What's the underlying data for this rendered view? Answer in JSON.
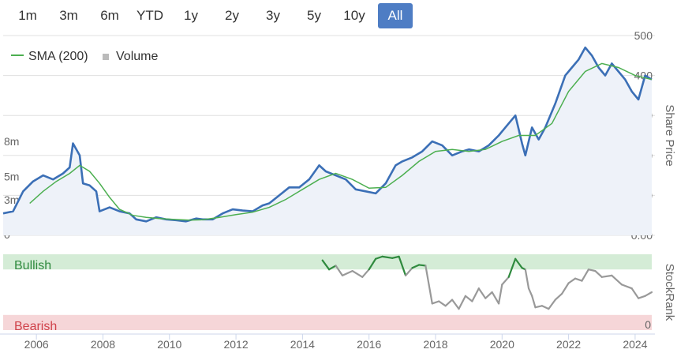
{
  "range_buttons": [
    {
      "label": "1m",
      "active": false
    },
    {
      "label": "3m",
      "active": false
    },
    {
      "label": "6m",
      "active": false
    },
    {
      "label": "YTD",
      "active": false
    },
    {
      "label": "1y",
      "active": false
    },
    {
      "label": "2y",
      "active": false
    },
    {
      "label": "3y",
      "active": false
    },
    {
      "label": "5y",
      "active": false
    },
    {
      "label": "10y",
      "active": false
    },
    {
      "label": "All",
      "active": true
    }
  ],
  "colors": {
    "price": "#3b6fb6",
    "sma": "#4caf50",
    "volume": "#bbbbbb",
    "bullish_band": "#d4ecd6",
    "bearish_band": "#f6d6d8",
    "rank_neutral": "#999999",
    "rank_bull": "#2f8a3e",
    "rank_bear": "#d0434b",
    "active_button": "#4e7dc4"
  },
  "chart_data": [
    {
      "type": "line",
      "legend": {
        "placement": "top-left",
        "entries": [
          "SMA (200)",
          "Volume"
        ]
      },
      "y_axis": {
        "title": "Share Price",
        "ticks": [
          "0.00",
          "100",
          "200",
          "300",
          "400",
          "500"
        ],
        "range": [
          0,
          500
        ],
        "position": "right"
      },
      "volume_axis": {
        "ticks": [
          "0",
          "3m",
          "5m",
          "8m"
        ],
        "range": [
          0,
          8
        ],
        "unit": "m",
        "position": "left"
      },
      "x_axis": {
        "ticks": [
          "2006",
          "2008",
          "2010",
          "2012",
          "2014",
          "2016",
          "2018",
          "2020",
          "2022",
          "2024"
        ],
        "range": [
          2005.0,
          2024.5
        ]
      },
      "grid": true,
      "series": [
        {
          "name": "Share Price",
          "points": [
            [
              2005.0,
              55
            ],
            [
              2005.3,
              60
            ],
            [
              2005.6,
              110
            ],
            [
              2005.9,
              135
            ],
            [
              2006.2,
              150
            ],
            [
              2006.5,
              140
            ],
            [
              2006.8,
              155
            ],
            [
              2007.0,
              170
            ],
            [
              2007.1,
              230
            ],
            [
              2007.3,
              200
            ],
            [
              2007.4,
              130
            ],
            [
              2007.6,
              125
            ],
            [
              2007.8,
              110
            ],
            [
              2007.9,
              60
            ],
            [
              2008.2,
              70
            ],
            [
              2008.5,
              60
            ],
            [
              2008.8,
              55
            ],
            [
              2009.0,
              40
            ],
            [
              2009.3,
              35
            ],
            [
              2009.6,
              45
            ],
            [
              2009.9,
              40
            ],
            [
              2010.2,
              38
            ],
            [
              2010.5,
              35
            ],
            [
              2010.8,
              42
            ],
            [
              2011.0,
              40
            ],
            [
              2011.3,
              40
            ],
            [
              2011.6,
              55
            ],
            [
              2011.9,
              65
            ],
            [
              2012.2,
              62
            ],
            [
              2012.5,
              60
            ],
            [
              2012.8,
              75
            ],
            [
              2013.0,
              80
            ],
            [
              2013.3,
              100
            ],
            [
              2013.6,
              120
            ],
            [
              2013.9,
              120
            ],
            [
              2014.2,
              140
            ],
            [
              2014.5,
              175
            ],
            [
              2014.7,
              160
            ],
            [
              2015.0,
              150
            ],
            [
              2015.3,
              140
            ],
            [
              2015.6,
              115
            ],
            [
              2015.9,
              110
            ],
            [
              2016.2,
              105
            ],
            [
              2016.5,
              130
            ],
            [
              2016.8,
              175
            ],
            [
              2017.0,
              185
            ],
            [
              2017.3,
              195
            ],
            [
              2017.6,
              210
            ],
            [
              2017.9,
              235
            ],
            [
              2018.2,
              225
            ],
            [
              2018.5,
              200
            ],
            [
              2018.8,
              210
            ],
            [
              2019.0,
              215
            ],
            [
              2019.3,
              210
            ],
            [
              2019.6,
              225
            ],
            [
              2019.9,
              250
            ],
            [
              2020.2,
              280
            ],
            [
              2020.4,
              300
            ],
            [
              2020.6,
              230
            ],
            [
              2020.7,
              200
            ],
            [
              2020.9,
              270
            ],
            [
              2021.1,
              240
            ],
            [
              2021.3,
              270
            ],
            [
              2021.6,
              330
            ],
            [
              2021.9,
              400
            ],
            [
              2022.1,
              420
            ],
            [
              2022.3,
              440
            ],
            [
              2022.5,
              470
            ],
            [
              2022.7,
              450
            ],
            [
              2022.9,
              420
            ],
            [
              2023.1,
              400
            ],
            [
              2023.3,
              430
            ],
            [
              2023.5,
              410
            ],
            [
              2023.7,
              390
            ],
            [
              2023.9,
              360
            ],
            [
              2024.1,
              340
            ],
            [
              2024.3,
              400
            ],
            [
              2024.5,
              390
            ]
          ]
        },
        {
          "name": "SMA (200)",
          "points": [
            [
              2005.8,
              80
            ],
            [
              2006.2,
              110
            ],
            [
              2006.6,
              135
            ],
            [
              2007.0,
              155
            ],
            [
              2007.3,
              175
            ],
            [
              2007.6,
              160
            ],
            [
              2007.9,
              130
            ],
            [
              2008.2,
              95
            ],
            [
              2008.5,
              65
            ],
            [
              2008.9,
              50
            ],
            [
              2009.3,
              45
            ],
            [
              2009.7,
              42
            ],
            [
              2010.1,
              40
            ],
            [
              2010.6,
              38
            ],
            [
              2011.0,
              39
            ],
            [
              2011.5,
              45
            ],
            [
              2012.0,
              52
            ],
            [
              2012.5,
              58
            ],
            [
              2013.0,
              70
            ],
            [
              2013.5,
              90
            ],
            [
              2014.0,
              115
            ],
            [
              2014.5,
              140
            ],
            [
              2015.0,
              155
            ],
            [
              2015.5,
              140
            ],
            [
              2016.0,
              118
            ],
            [
              2016.5,
              120
            ],
            [
              2017.0,
              150
            ],
            [
              2017.5,
              185
            ],
            [
              2018.0,
              210
            ],
            [
              2018.5,
              215
            ],
            [
              2019.0,
              210
            ],
            [
              2019.5,
              215
            ],
            [
              2020.0,
              235
            ],
            [
              2020.5,
              250
            ],
            [
              2021.0,
              250
            ],
            [
              2021.5,
              280
            ],
            [
              2022.0,
              360
            ],
            [
              2022.5,
              410
            ],
            [
              2023.0,
              430
            ],
            [
              2023.5,
              420
            ],
            [
              2024.0,
              400
            ],
            [
              2024.5,
              390
            ]
          ]
        }
      ]
    },
    {
      "type": "line",
      "y_axis": {
        "title": "StockRank",
        "ticks": [
          "0"
        ],
        "range": [
          0,
          100
        ],
        "position": "right"
      },
      "bands": [
        {
          "label": "Bullish",
          "from": 80,
          "to": 100
        },
        {
          "label": "Bearish",
          "from": 0,
          "to": 20
        }
      ],
      "series": [
        {
          "name": "StockRank",
          "points": [
            [
              2014.6,
              92
            ],
            [
              2014.8,
              80
            ],
            [
              2015.0,
              85
            ],
            [
              2015.2,
              72
            ],
            [
              2015.5,
              78
            ],
            [
              2015.8,
              70
            ],
            [
              2016.0,
              80
            ],
            [
              2016.2,
              94
            ],
            [
              2016.4,
              97
            ],
            [
              2016.7,
              95
            ],
            [
              2016.9,
              97
            ],
            [
              2017.1,
              72
            ],
            [
              2017.3,
              82
            ],
            [
              2017.5,
              86
            ],
            [
              2017.7,
              85
            ],
            [
              2017.8,
              60
            ],
            [
              2017.9,
              35
            ],
            [
              2018.1,
              38
            ],
            [
              2018.3,
              32
            ],
            [
              2018.5,
              40
            ],
            [
              2018.7,
              28
            ],
            [
              2018.9,
              45
            ],
            [
              2019.1,
              38
            ],
            [
              2019.3,
              55
            ],
            [
              2019.5,
              42
            ],
            [
              2019.7,
              50
            ],
            [
              2019.9,
              35
            ],
            [
              2020.0,
              60
            ],
            [
              2020.2,
              70
            ],
            [
              2020.4,
              94
            ],
            [
              2020.6,
              82
            ],
            [
              2020.7,
              80
            ],
            [
              2020.8,
              55
            ],
            [
              2020.9,
              45
            ],
            [
              2021.0,
              30
            ],
            [
              2021.2,
              32
            ],
            [
              2021.4,
              28
            ],
            [
              2021.6,
              40
            ],
            [
              2021.8,
              48
            ],
            [
              2022.0,
              62
            ],
            [
              2022.2,
              68
            ],
            [
              2022.4,
              65
            ],
            [
              2022.6,
              80
            ],
            [
              2022.8,
              78
            ],
            [
              2023.0,
              70
            ],
            [
              2023.3,
              72
            ],
            [
              2023.6,
              60
            ],
            [
              2023.9,
              55
            ],
            [
              2024.1,
              42
            ],
            [
              2024.3,
              45
            ],
            [
              2024.5,
              50
            ]
          ]
        }
      ]
    }
  ]
}
